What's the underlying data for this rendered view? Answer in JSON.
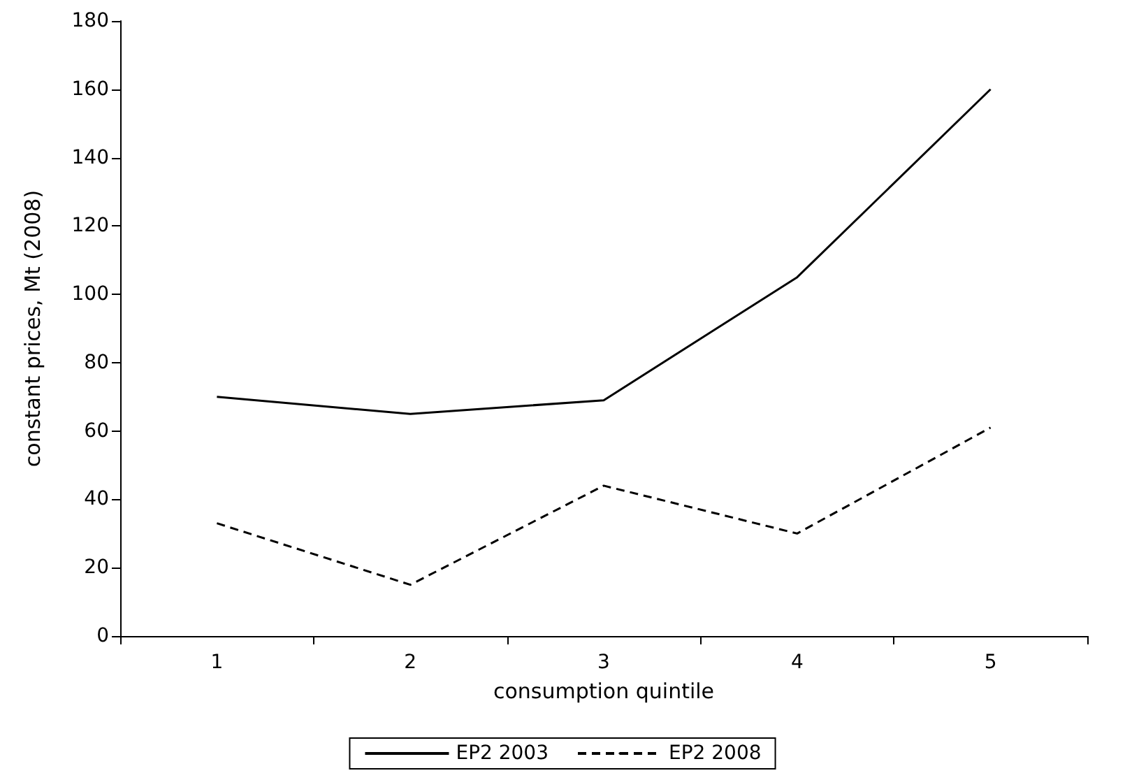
{
  "chart_data": {
    "type": "line",
    "xlabel": "consumption quintile",
    "ylabel": "constant prices, Mt (2008)",
    "categories": [
      "1",
      "2",
      "3",
      "4",
      "5"
    ],
    "series": [
      {
        "name": "EP2 2003",
        "color": "#000000",
        "line_style": "solid",
        "values": [
          70,
          65,
          69,
          105,
          160
        ]
      },
      {
        "name": "EP2 2008",
        "color": "#000000",
        "line_style": "dashed",
        "values": [
          33,
          15,
          44,
          30,
          61
        ]
      }
    ],
    "ylim": [
      0,
      180
    ],
    "yticks": [
      0,
      20,
      40,
      60,
      80,
      100,
      120,
      140,
      160,
      180
    ],
    "grid": false,
    "legend": "bottom",
    "marker": "none"
  }
}
